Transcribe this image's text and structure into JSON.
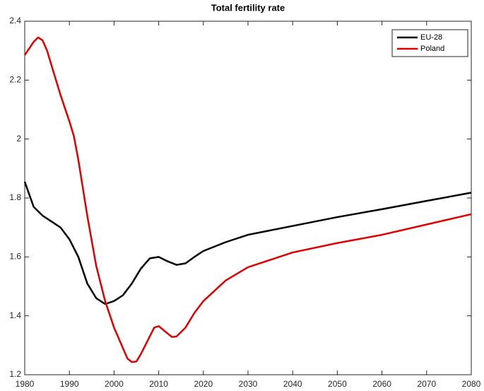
{
  "chart_data": {
    "type": "line",
    "title": "Total fertility rate",
    "xlim": [
      1980,
      2080
    ],
    "xticks": [
      1980,
      1990,
      2000,
      2010,
      2020,
      2030,
      2040,
      2050,
      2060,
      2070,
      2080
    ],
    "ylim": [
      1.2,
      2.4
    ],
    "yticks": [
      1.2,
      1.4,
      1.6,
      1.8,
      2,
      2.2,
      2.4
    ],
    "grid": false,
    "legend": "northeast",
    "series": [
      {
        "name": "EU-28",
        "color": "#000000",
        "x": [
          1980,
          1982,
          1984,
          1986,
          1988,
          1990,
          1992,
          1994,
          1996,
          1998,
          2000,
          2002,
          2004,
          2006,
          2008,
          2010,
          2012,
          2014,
          2016,
          2018,
          2020,
          2025,
          2030,
          2040,
          2050,
          2060,
          2070,
          2080
        ],
        "values": [
          1.855,
          1.77,
          1.74,
          1.72,
          1.7,
          1.66,
          1.6,
          1.51,
          1.46,
          1.44,
          1.45,
          1.47,
          1.51,
          1.56,
          1.595,
          1.6,
          1.585,
          1.573,
          1.578,
          1.6,
          1.62,
          1.65,
          1.675,
          1.705,
          1.735,
          1.762,
          1.79,
          1.818
        ]
      },
      {
        "name": "Poland",
        "color": "#e00000",
        "x": [
          1980,
          1982,
          1983,
          1984,
          1985,
          1986,
          1988,
          1990,
          1991,
          1992,
          1994,
          1996,
          1998,
          2000,
          2002,
          2003,
          2004,
          2005,
          2006,
          2008,
          2009,
          2010,
          2012,
          2013,
          2014,
          2016,
          2018,
          2020,
          2025,
          2030,
          2040,
          2050,
          2060,
          2070,
          2080
        ],
        "values": [
          2.285,
          2.33,
          2.345,
          2.335,
          2.3,
          2.25,
          2.15,
          2.06,
          2.01,
          1.93,
          1.74,
          1.57,
          1.45,
          1.36,
          1.29,
          1.255,
          1.243,
          1.245,
          1.27,
          1.33,
          1.36,
          1.365,
          1.34,
          1.328,
          1.33,
          1.36,
          1.41,
          1.45,
          1.52,
          1.565,
          1.615,
          1.647,
          1.675,
          1.71,
          1.745
        ]
      }
    ]
  }
}
